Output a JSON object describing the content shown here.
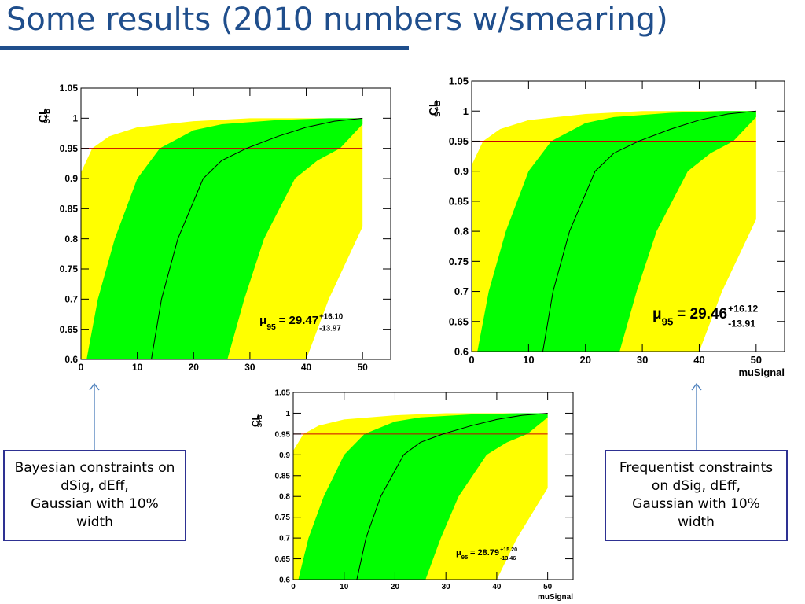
{
  "title": "Some results (2010 numbers w/smearing)",
  "notes": [
    {
      "lines": [
        "Bayesian constraints on",
        "dSig, dEff,",
        "Gaussian with 10%",
        "width"
      ]
    },
    {
      "lines": [
        "Frequentist constraints",
        "on dSig, dEff,",
        "Gaussian with 10%",
        "width"
      ]
    }
  ],
  "chart_data": [
    {
      "type": "band",
      "y_label": "CL",
      "y_label_sub": "S+B",
      "xlim": [
        0,
        55
      ],
      "ylim": [
        0.6,
        1.05
      ],
      "xticks": [
        0,
        10,
        20,
        30,
        40,
        50
      ],
      "yticks": [
        0.6,
        0.65,
        0.7,
        0.75,
        0.8,
        0.85,
        0.9,
        0.95,
        1,
        1.05
      ],
      "bands": [
        {
          "color": "#ffff00",
          "upper": {
            "x": [
              0,
              2,
              5,
              10,
              20,
              30,
              50
            ],
            "values": [
              0.91,
              0.95,
              0.97,
              0.985,
              0.995,
              1,
              1
            ]
          },
          "lower": {
            "x": [
              40,
              44,
              47,
              50
            ],
            "values": [
              0.6,
              0.7,
              0.76,
              0.82
            ]
          }
        },
        {
          "color": "#00ff00",
          "upper": {
            "x": [
              1,
              3,
              6,
              10,
              14,
              20,
              25,
              35,
              44,
              50
            ],
            "values": [
              0.6,
              0.7,
              0.8,
              0.9,
              0.95,
              0.98,
              0.99,
              0.997,
              1,
              1
            ]
          },
          "lower": {
            "x": [
              26,
              29,
              32.5,
              38,
              42,
              46,
              50
            ],
            "values": [
              0.6,
              0.7,
              0.8,
              0.9,
              0.93,
              0.95,
              0.99
            ]
          }
        }
      ],
      "median": {
        "color": "#000000",
        "x": [
          12.5,
          14.3,
          17.2,
          21.7,
          25,
          29.4,
          35,
          40,
          45,
          50
        ],
        "values": [
          0.6,
          0.7,
          0.8,
          0.9,
          0.93,
          0.95,
          0.97,
          0.985,
          0.995,
          1
        ]
      },
      "hline": {
        "value": 0.95,
        "color": "#cc0000"
      },
      "annotation": {
        "symbol": "μ",
        "subscript": "95",
        "text": "= 29.47",
        "plus": "+16.10",
        "minus": "-13.97"
      }
    },
    {
      "type": "band",
      "y_label": "CL",
      "y_label_sub": "S+B",
      "x_label": "muSignal",
      "xlim": [
        0,
        55
      ],
      "ylim": [
        0.6,
        1.05
      ],
      "xticks": [
        0,
        10,
        20,
        30,
        40,
        50
      ],
      "yticks": [
        0.6,
        0.65,
        0.7,
        0.75,
        0.8,
        0.85,
        0.9,
        0.95,
        1,
        1.05
      ],
      "bands": [
        {
          "color": "#ffff00",
          "upper": {
            "x": [
              0,
              2,
              5,
              10,
              20,
              30,
              50
            ],
            "values": [
              0.91,
              0.95,
              0.97,
              0.985,
              0.995,
              1,
              1
            ]
          },
          "lower": {
            "x": [
              40,
              44,
              47,
              50
            ],
            "values": [
              0.6,
              0.7,
              0.76,
              0.82
            ]
          }
        },
        {
          "color": "#00ff00",
          "upper": {
            "x": [
              1,
              3,
              6,
              10,
              14,
              20,
              25,
              35,
              44,
              50
            ],
            "values": [
              0.6,
              0.7,
              0.8,
              0.9,
              0.95,
              0.98,
              0.99,
              0.997,
              1,
              1
            ]
          },
          "lower": {
            "x": [
              26,
              29,
              32.5,
              38,
              42,
              46,
              50
            ],
            "values": [
              0.6,
              0.7,
              0.8,
              0.9,
              0.93,
              0.95,
              0.99
            ]
          }
        }
      ],
      "median": {
        "color": "#000000",
        "x": [
          12.5,
          14.3,
          17.2,
          21.7,
          25,
          29.4,
          35,
          40,
          45,
          50
        ],
        "values": [
          0.6,
          0.7,
          0.8,
          0.9,
          0.93,
          0.95,
          0.97,
          0.985,
          0.995,
          1
        ]
      },
      "hline": {
        "value": 0.95,
        "color": "#cc0000"
      },
      "annotation": {
        "symbol": "μ",
        "subscript": "95",
        "text": "= 29.46",
        "plus": "+16.12",
        "minus": "-13.91"
      }
    },
    {
      "type": "band",
      "y_label": "CL",
      "y_label_sub": "S+B",
      "x_label": "muSignal",
      "xlim": [
        0,
        55
      ],
      "ylim": [
        0.6,
        1.05
      ],
      "xticks": [
        0,
        10,
        20,
        30,
        40,
        50
      ],
      "yticks": [
        0.6,
        0.65,
        0.7,
        0.75,
        0.8,
        0.85,
        0.9,
        0.95,
        1,
        1.05
      ],
      "bands": [
        {
          "color": "#ffff00",
          "upper": {
            "x": [
              0,
              2,
              5,
              10,
              20,
              30,
              50
            ],
            "values": [
              0.91,
              0.95,
              0.97,
              0.985,
              0.995,
              1,
              1
            ]
          },
          "lower": {
            "x": [
              40,
              44,
              47,
              50
            ],
            "values": [
              0.6,
              0.7,
              0.76,
              0.82
            ]
          }
        },
        {
          "color": "#00ff00",
          "upper": {
            "x": [
              1,
              3,
              6,
              10,
              14,
              20,
              25,
              35,
              44,
              50
            ],
            "values": [
              0.6,
              0.7,
              0.8,
              0.9,
              0.95,
              0.98,
              0.99,
              0.997,
              1,
              1
            ]
          },
          "lower": {
            "x": [
              26,
              29,
              32.5,
              38,
              42,
              46,
              50
            ],
            "values": [
              0.6,
              0.7,
              0.8,
              0.9,
              0.93,
              0.95,
              0.99
            ]
          }
        }
      ],
      "median": {
        "color": "#000000",
        "x": [
          12.5,
          14.3,
          17.2,
          21.7,
          25,
          29.4,
          35,
          40,
          45,
          50
        ],
        "values": [
          0.6,
          0.7,
          0.8,
          0.9,
          0.93,
          0.95,
          0.97,
          0.985,
          0.995,
          1
        ]
      },
      "hline": {
        "value": 0.95,
        "color": "#cc0000"
      },
      "annotation": {
        "symbol": "μ",
        "subscript": "95",
        "text": "= 28.79",
        "plus": "+15.20",
        "minus": "-13.46"
      }
    }
  ]
}
